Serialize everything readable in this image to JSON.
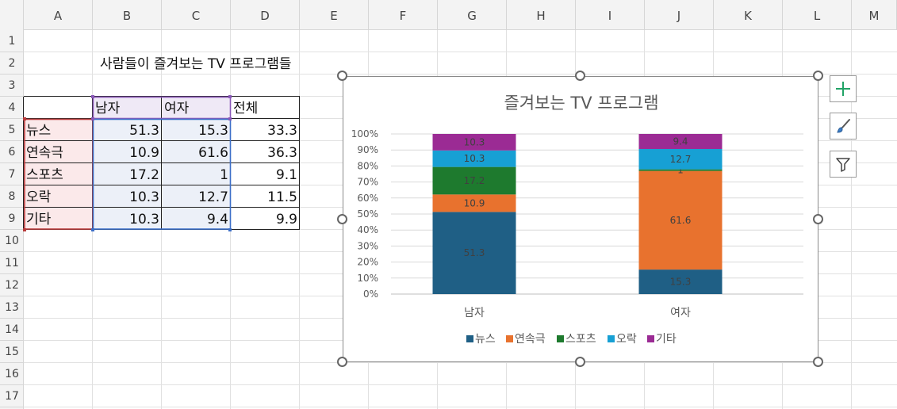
{
  "columns": [
    "A",
    "B",
    "C",
    "D",
    "E",
    "F",
    "G",
    "H",
    "I",
    "J",
    "K",
    "L",
    "M"
  ],
  "rows": [
    "1",
    "2",
    "3",
    "4",
    "5",
    "6",
    "7",
    "8",
    "9",
    "10",
    "11",
    "12",
    "13",
    "14",
    "15",
    "16",
    "17"
  ],
  "sheet": {
    "title": "사람들이 즐겨보는 TV 프로그램들",
    "headers": [
      "남자",
      "여자",
      "전체"
    ],
    "table": [
      {
        "label": "뉴스",
        "male": "51.3",
        "female": "15.3",
        "total": "33.3"
      },
      {
        "label": "연속극",
        "male": "10.9",
        "female": "61.6",
        "total": "36.3"
      },
      {
        "label": "스포츠",
        "male": "17.2",
        "female": "1",
        "total": "9.1"
      },
      {
        "label": "오락",
        "male": "10.3",
        "female": "12.7",
        "total": "11.5"
      },
      {
        "label": "기타",
        "male": "10.3",
        "female": "9.4",
        "total": "9.9"
      }
    ]
  },
  "chart_data": {
    "type": "bar",
    "stacked": "percent",
    "title": "즐겨보는 TV 프로그램",
    "categories": [
      "남자",
      "여자"
    ],
    "series": [
      {
        "name": "뉴스",
        "color": "#1f5f85",
        "values": [
          51.3,
          15.3
        ]
      },
      {
        "name": "연속극",
        "color": "#e8722e",
        "values": [
          10.9,
          61.6
        ]
      },
      {
        "name": "스포츠",
        "color": "#1e7a2e",
        "values": [
          17.2,
          1
        ]
      },
      {
        "name": "오락",
        "color": "#17a0d4",
        "values": [
          10.3,
          12.7
        ]
      },
      {
        "name": "기타",
        "color": "#9b2b94",
        "values": [
          10.3,
          9.4
        ]
      }
    ],
    "yticks": [
      "0%",
      "10%",
      "20%",
      "30%",
      "40%",
      "50%",
      "60%",
      "70%",
      "80%",
      "90%",
      "100%"
    ],
    "ylim": [
      0,
      100
    ],
    "legend": "bottom",
    "grid": true
  },
  "colors": {
    "accent_green": "#21a366",
    "row_label_bg": "#fbe9ea",
    "header_bg": "#efe9f6",
    "data_bg": "#ecf0f8"
  },
  "icons": {
    "chart_elements": "plus-icon",
    "chart_styles": "brush-icon",
    "chart_filters": "filter-icon"
  }
}
